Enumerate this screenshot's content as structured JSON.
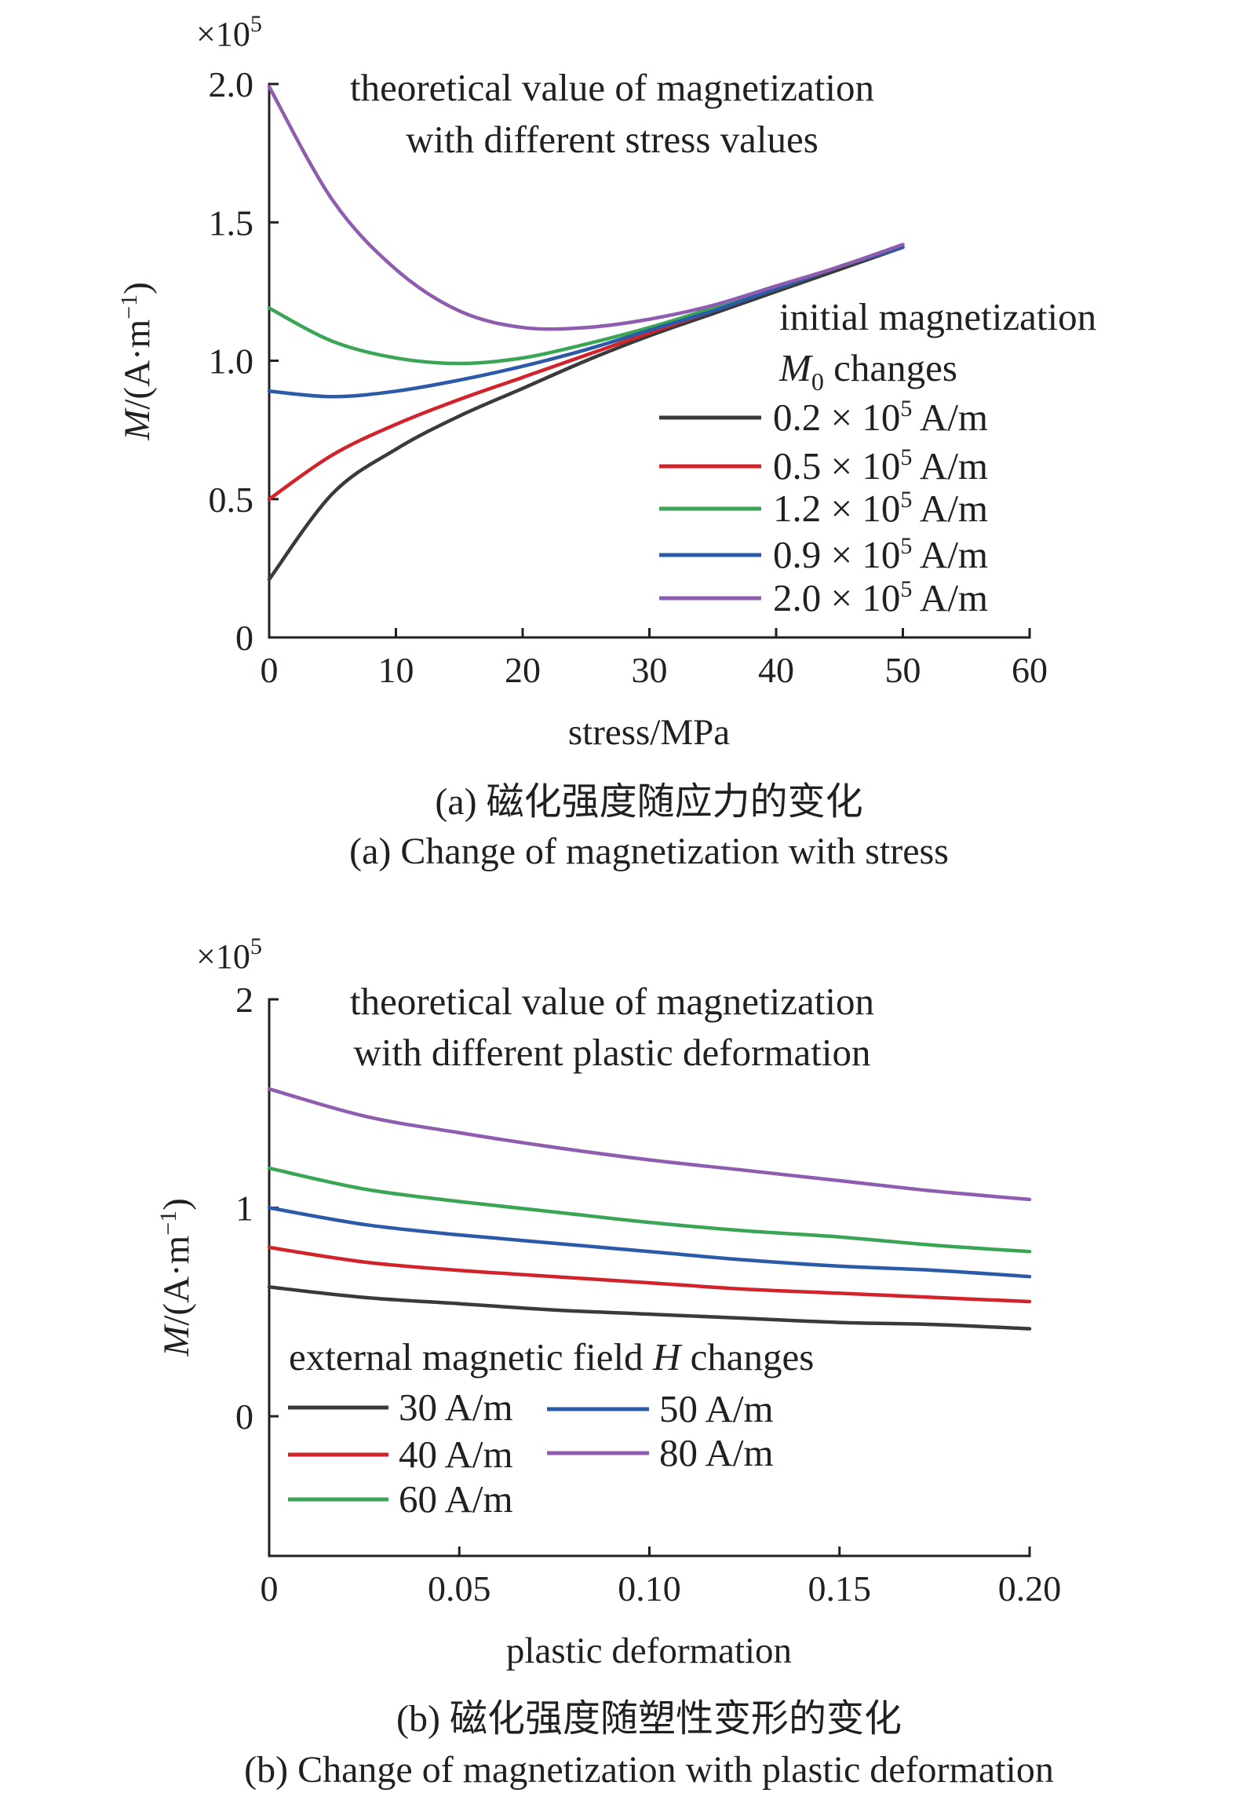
{
  "chart_data": [
    {
      "type": "line",
      "title": "theoretical value of magnetization",
      "subtitle": "with different stress values",
      "xlabel": "stress/MPa",
      "ylabel_prefix": "M",
      "ylabel": "/(A·m",
      "ylabel_sup": "−1",
      "ylabel_suffix": ")",
      "y_multiplier": "×10",
      "y_multiplier_sup": "5",
      "xlim": [
        0,
        60
      ],
      "ylim": [
        0,
        2.0
      ],
      "x_ticks": [
        0,
        10,
        20,
        30,
        40,
        50,
        60
      ],
      "x_tick_labels": [
        "0",
        "10",
        "20",
        "30",
        "40",
        "50",
        "60"
      ],
      "y_ticks": [
        0,
        0.5,
        1.0,
        1.5,
        2.0
      ],
      "y_tick_labels": [
        "0",
        "0.5",
        "1.0",
        "1.5",
        "2.0"
      ],
      "grid": false,
      "legend_title_1": "initial magnetization",
      "legend_title_2_sym": "M",
      "legend_title_2_sub": "0",
      "legend_title_2_rest": " changes",
      "legend_position": "right",
      "x": [
        0,
        5,
        10,
        15,
        20,
        25,
        30,
        35,
        40,
        45,
        50
      ],
      "series": [
        {
          "name_pre": "0.2 × 10",
          "name_sup": "5",
          "name_post": " A/m",
          "color": "#3a3a3c",
          "values": [
            0.21,
            0.52,
            0.68,
            0.8,
            0.9,
            1.0,
            1.09,
            1.17,
            1.25,
            1.33,
            1.41
          ]
        },
        {
          "name_pre": "0.5 × 10",
          "name_sup": "5",
          "name_post": " A/m",
          "color": "#d2232a",
          "values": [
            0.5,
            0.66,
            0.77,
            0.86,
            0.94,
            1.02,
            1.1,
            1.18,
            1.26,
            1.34,
            1.41
          ]
        },
        {
          "name_pre": "1.2 × 10",
          "name_sup": "5",
          "name_post": " A/m",
          "color": "#3aa655",
          "values": [
            1.19,
            1.07,
            1.01,
            0.99,
            1.01,
            1.06,
            1.12,
            1.19,
            1.26,
            1.34,
            1.41
          ]
        },
        {
          "name_pre": "0.9 × 10",
          "name_sup": "5",
          "name_post": " A/m",
          "color": "#2b5aa8",
          "values": [
            0.89,
            0.87,
            0.89,
            0.93,
            0.98,
            1.04,
            1.11,
            1.18,
            1.26,
            1.34,
            1.41
          ]
        },
        {
          "name_pre": "2.0 × 10",
          "name_sup": "5",
          "name_post": " A/m",
          "color": "#8e5db0",
          "values": [
            1.99,
            1.58,
            1.33,
            1.18,
            1.12,
            1.12,
            1.15,
            1.2,
            1.27,
            1.34,
            1.42
          ]
        }
      ]
    },
    {
      "type": "line",
      "title": "theoretical value of magnetization",
      "subtitle": "with different plastic deformation",
      "xlabel": "plastic deformation",
      "ylabel_prefix": "M",
      "ylabel": "/(A·m",
      "ylabel_sup": "−1",
      "ylabel_suffix": ")",
      "y_multiplier": "×10",
      "y_multiplier_sup": "5",
      "xlim": [
        0,
        0.2
      ],
      "ylim": [
        -0.67,
        2
      ],
      "x_ticks": [
        0,
        0.05,
        0.1,
        0.15,
        0.2
      ],
      "x_tick_labels": [
        "0",
        "0.05",
        "0.10",
        "0.15",
        "0.20"
      ],
      "y_ticks": [
        0,
        1,
        2
      ],
      "y_tick_labels": [
        "0",
        "1",
        "2"
      ],
      "grid": false,
      "legend_title_pre": "external magnetic field ",
      "legend_title_sym": "H",
      "legend_title_post": " changes",
      "legend_position": "bottom-left",
      "x": [
        0,
        0.025,
        0.05,
        0.075,
        0.1,
        0.125,
        0.15,
        0.175,
        0.2
      ],
      "series": [
        {
          "name": "30 A/m",
          "color": "#3a3a3c",
          "values": [
            0.62,
            0.57,
            0.54,
            0.51,
            0.49,
            0.47,
            0.45,
            0.44,
            0.42
          ]
        },
        {
          "name": "40 A/m",
          "color": "#d2232a",
          "values": [
            0.81,
            0.74,
            0.7,
            0.67,
            0.64,
            0.61,
            0.59,
            0.57,
            0.55
          ]
        },
        {
          "name": "60 A/m",
          "color": "#3aa655",
          "values": [
            1.19,
            1.09,
            1.03,
            0.98,
            0.93,
            0.89,
            0.86,
            0.82,
            0.79
          ]
        },
        {
          "name": "50 A/m",
          "color": "#2b5aa8",
          "values": [
            1.0,
            0.92,
            0.87,
            0.83,
            0.79,
            0.75,
            0.72,
            0.7,
            0.67
          ]
        },
        {
          "name": "80 A/m",
          "color": "#8e5db0",
          "values": [
            1.57,
            1.44,
            1.36,
            1.29,
            1.23,
            1.18,
            1.13,
            1.08,
            1.04
          ]
        }
      ]
    }
  ],
  "captions": {
    "a_cn": "(a) 磁化强度随应力的变化",
    "a_en": "(a) Change of magnetization with stress",
    "b_cn": "(b) 磁化强度随塑性变形的变化",
    "b_en": "(b) Change of magnetization with plastic deformation"
  }
}
